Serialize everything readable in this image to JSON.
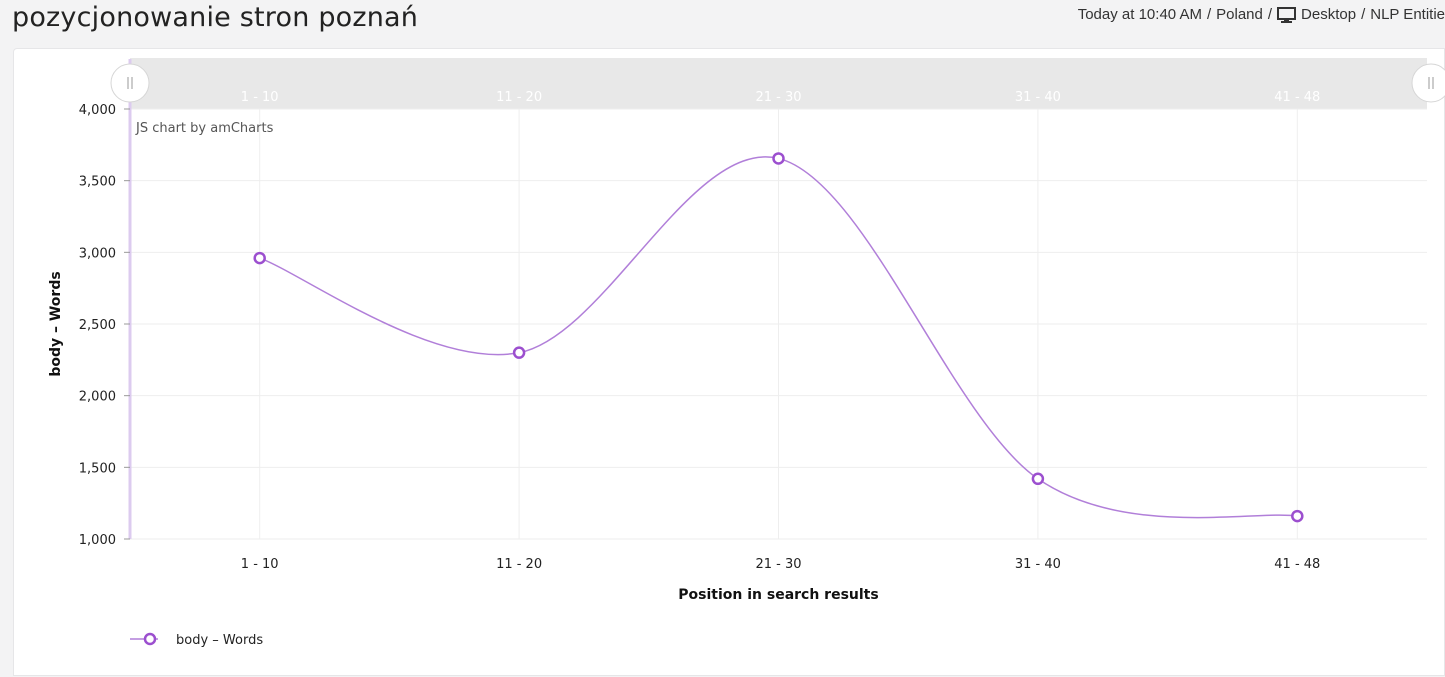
{
  "header": {
    "title": "pozycjonowanie stron poznań",
    "timestamp": "Today at 10:40 AM",
    "location": "Poland",
    "device": "Desktop",
    "report": "NLP Entitie",
    "separator": "/",
    "device_icon": "desktop-icon"
  },
  "credit": "JS chart by amCharts",
  "colors": {
    "series": "#9c4fcf",
    "series_line": "#b17fd9",
    "grid": "#eeeeee",
    "scrollbar": "#e8e8e8"
  },
  "chart_data": {
    "type": "line",
    "categories": [
      "1 - 10",
      "11 - 20",
      "21 - 30",
      "31 - 40",
      "41 - 48"
    ],
    "series": [
      {
        "name": "body – Words",
        "values": [
          2960,
          2300,
          3655,
          1420,
          1160
        ]
      }
    ],
    "xlabel": "Position in search results",
    "ylabel": "body – Words",
    "ylim": [
      1000,
      4000
    ],
    "yticks": [
      1000,
      1500,
      2000,
      2500,
      3000,
      3500,
      4000
    ],
    "ytick_labels": [
      "1,000",
      "1,500",
      "2,000",
      "2,500",
      "3,000",
      "3,500",
      "4,000"
    ],
    "grid": true,
    "smoothed": true,
    "legend_position": "bottom-left"
  }
}
